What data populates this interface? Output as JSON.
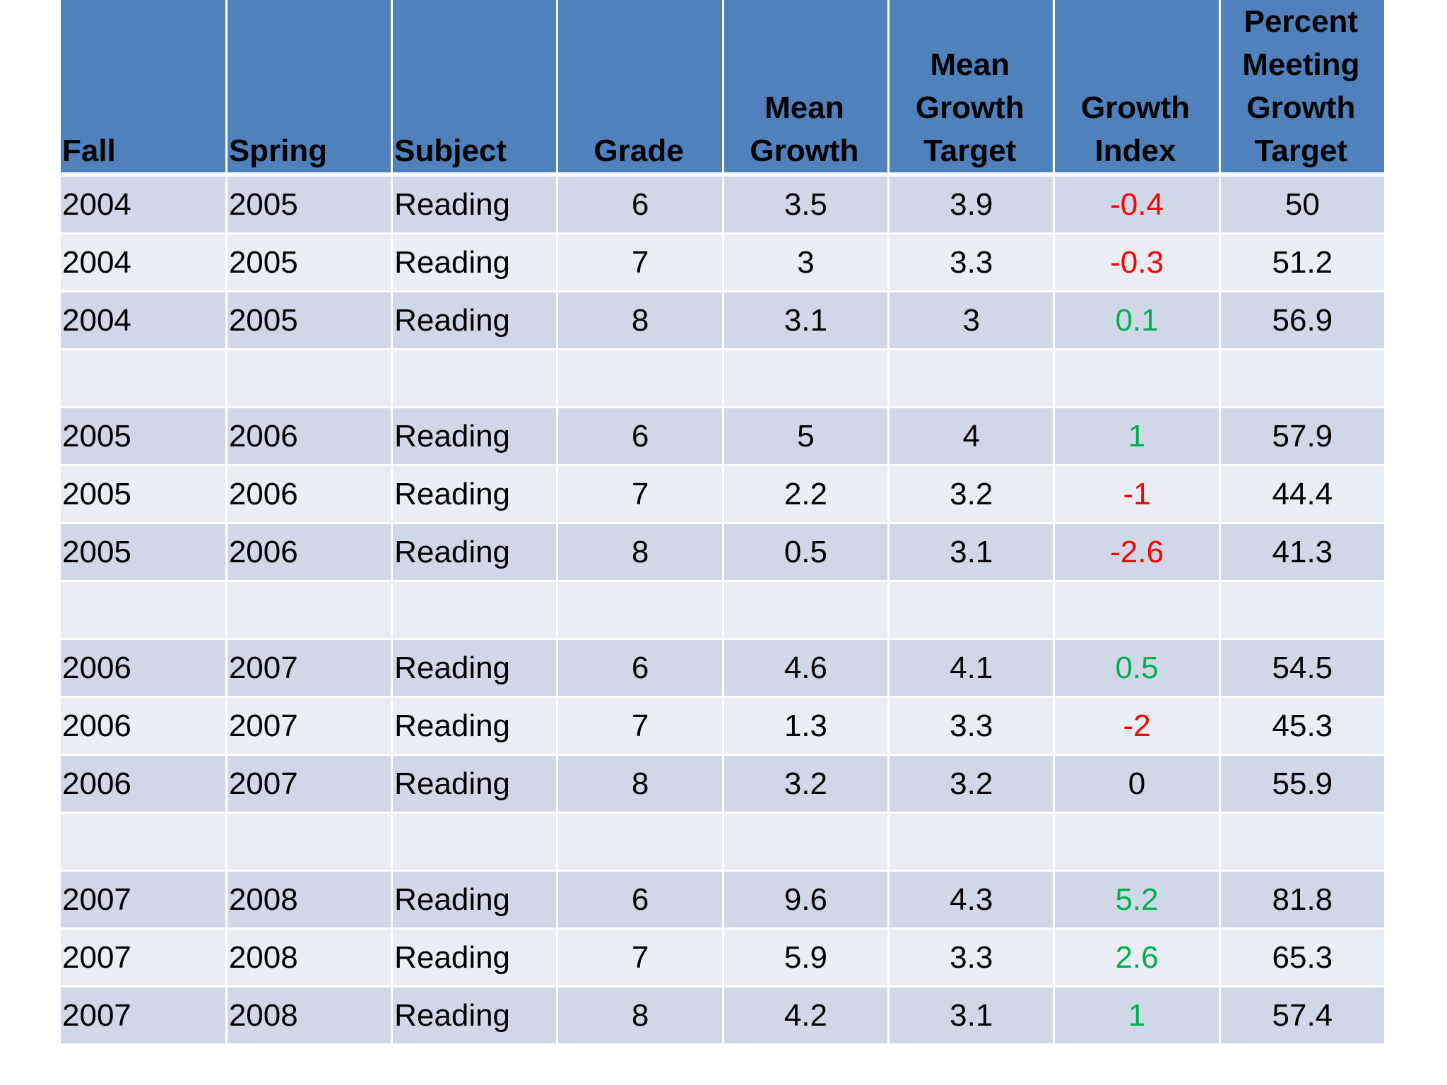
{
  "table": {
    "headers": [
      "Fall",
      "Spring",
      "Subject",
      "Grade",
      "Mean Growth",
      "Mean Growth Target",
      "Growth Index",
      "Percent Meeting Growth Target"
    ],
    "groups": [
      [
        [
          2004,
          2005,
          "Reading",
          6,
          3.5,
          3.9,
          -0.4,
          50
        ],
        [
          2004,
          2005,
          "Reading",
          7,
          3,
          3.3,
          -0.3,
          51.2
        ],
        [
          2004,
          2005,
          "Reading",
          8,
          3.1,
          3,
          0.1,
          56.9
        ]
      ],
      [
        [
          2005,
          2006,
          "Reading",
          6,
          5,
          4,
          1,
          57.9
        ],
        [
          2005,
          2006,
          "Reading",
          7,
          2.2,
          3.2,
          -1,
          44.4
        ],
        [
          2005,
          2006,
          "Reading",
          8,
          0.5,
          3.1,
          -2.6,
          41.3
        ]
      ],
      [
        [
          2006,
          2007,
          "Reading",
          6,
          4.6,
          4.1,
          0.5,
          54.5
        ],
        [
          2006,
          2007,
          "Reading",
          7,
          1.3,
          3.3,
          -2,
          45.3
        ],
        [
          2006,
          2007,
          "Reading",
          8,
          3.2,
          3.2,
          0,
          55.9
        ]
      ],
      [
        [
          2007,
          2008,
          "Reading",
          6,
          9.6,
          4.3,
          5.2,
          81.8
        ],
        [
          2007,
          2008,
          "Reading",
          7,
          5.9,
          3.3,
          2.6,
          65.3
        ],
        [
          2007,
          2008,
          "Reading",
          8,
          4.2,
          3.1,
          1,
          57.4
        ]
      ]
    ]
  }
}
